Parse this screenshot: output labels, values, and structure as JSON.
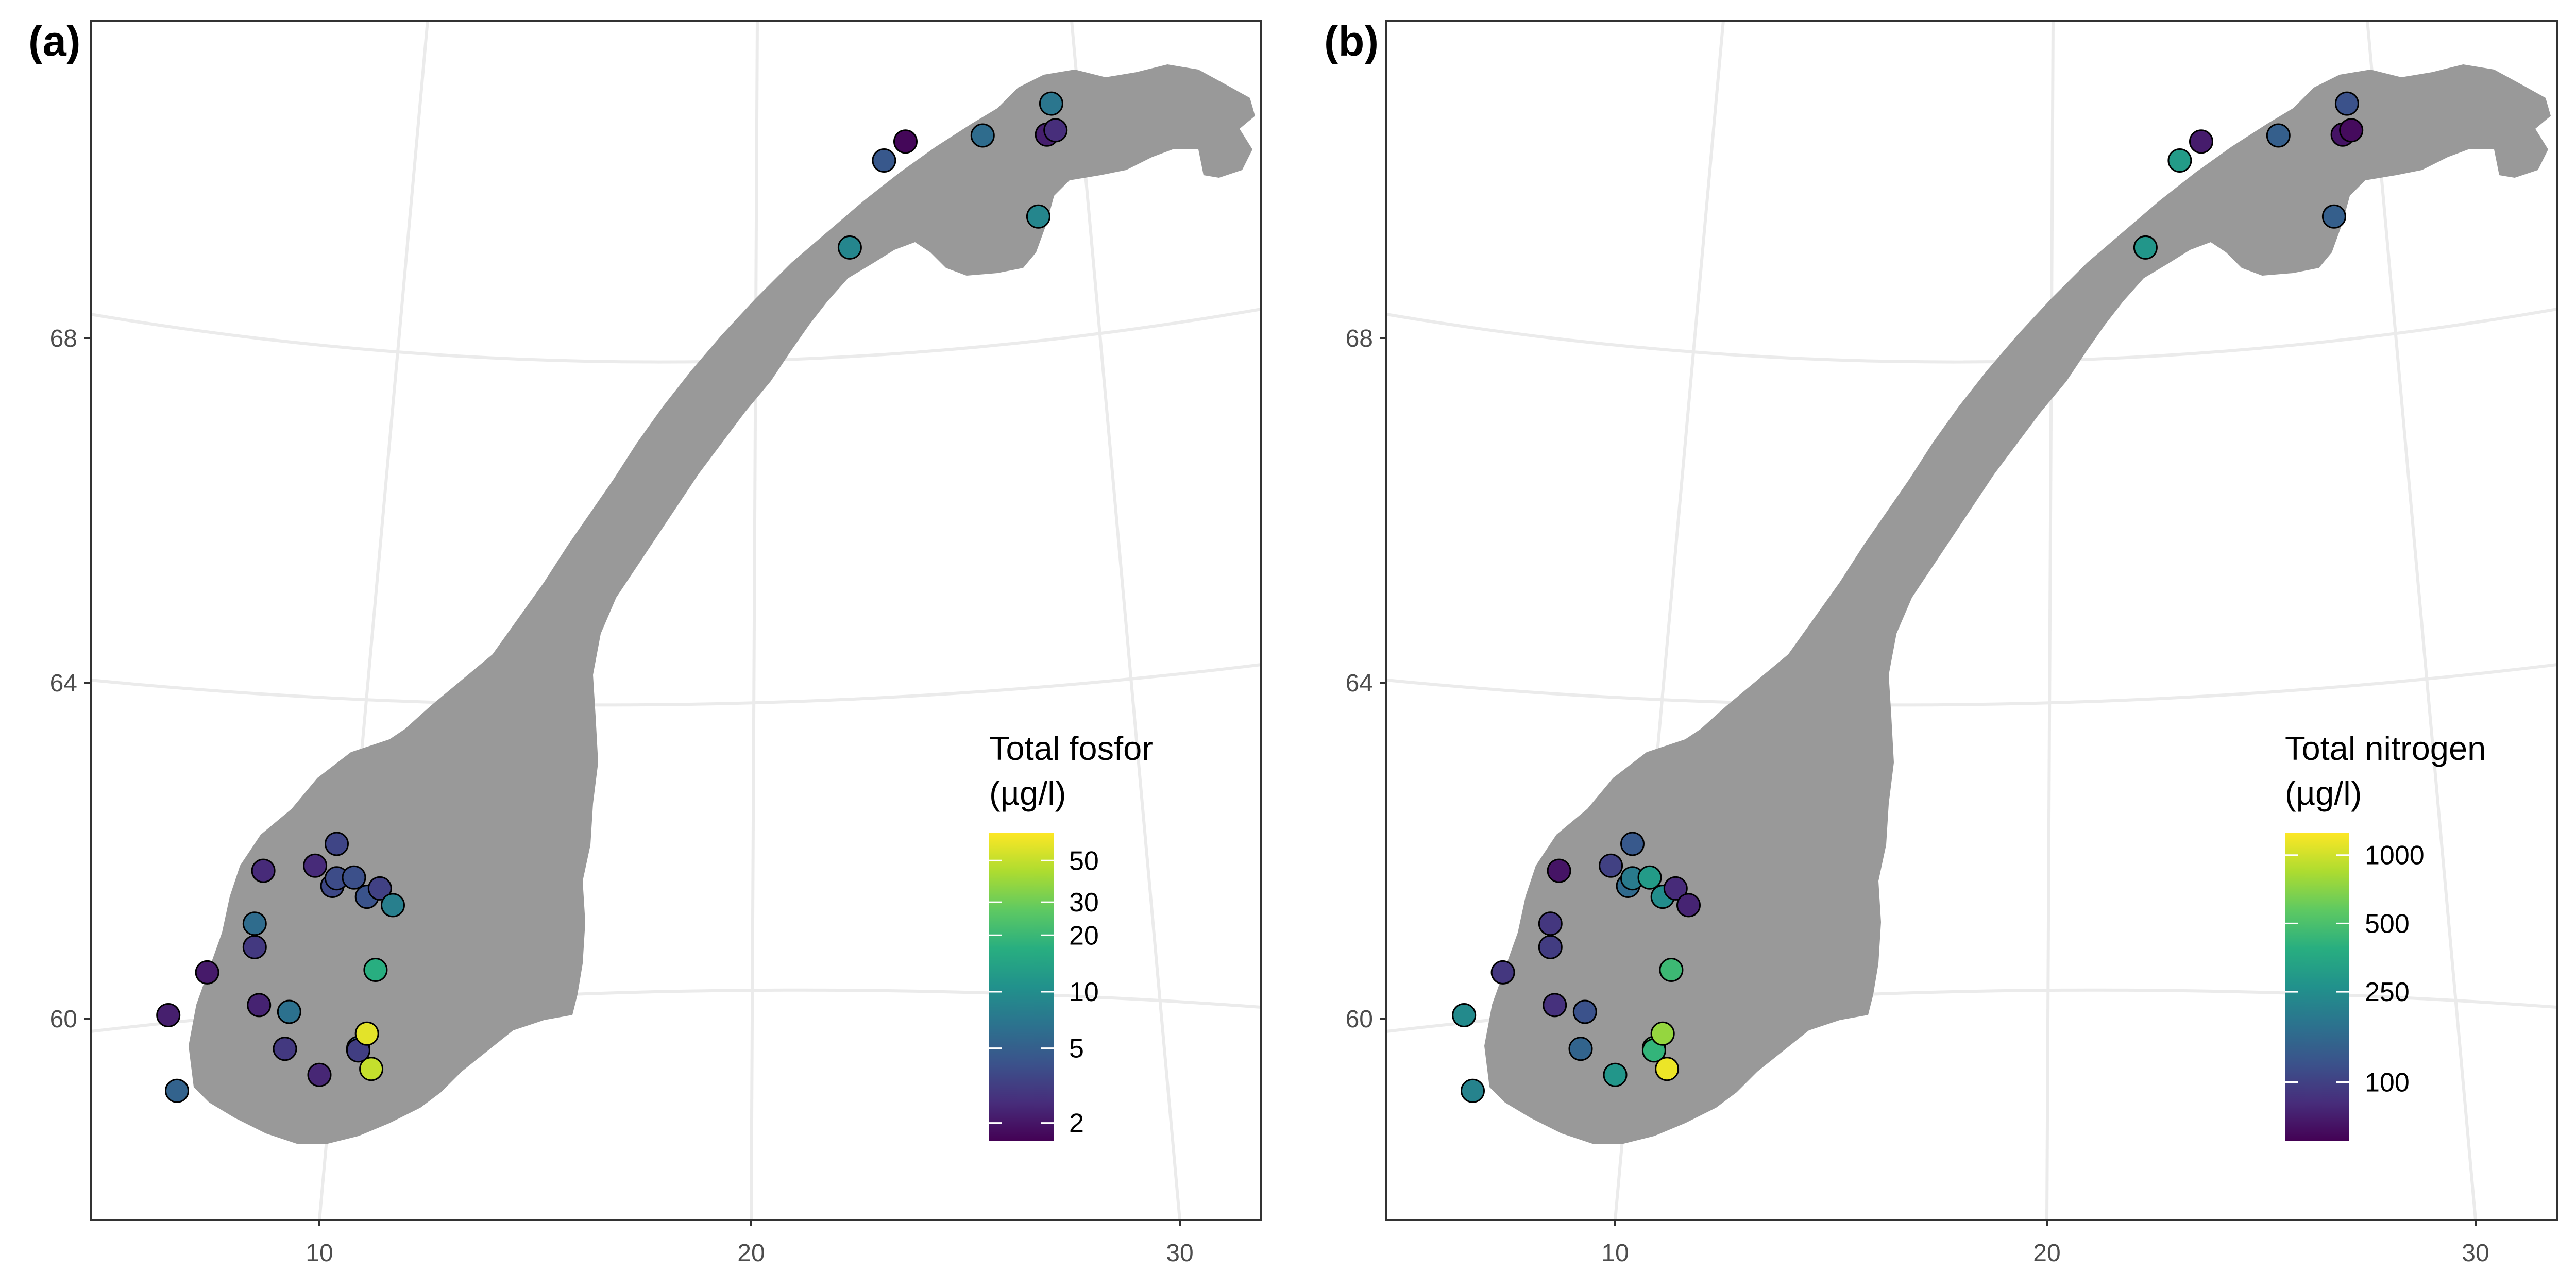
{
  "axes": {
    "x_ticks": [
      "10",
      "20",
      "30"
    ],
    "y_ticks": [
      "60",
      "64",
      "68"
    ]
  },
  "panels": [
    {
      "tag": "(a)",
      "legend": {
        "title_line1": "Total fosfor",
        "title_line2": "(µg/l)",
        "ticks": [
          "50",
          "30",
          "20",
          "10",
          "5",
          "2"
        ]
      },
      "lakes": [
        {
          "lon": 6.5,
          "lat": 60.04,
          "value": 2.2
        },
        {
          "lon": 6.7,
          "lat": 59.14,
          "value": 5.3
        },
        {
          "lon": 7.4,
          "lat": 60.55,
          "value": 2.1
        },
        {
          "lon": 8.6,
          "lat": 60.16,
          "value": 2.3
        },
        {
          "lon": 8.7,
          "lat": 61.76,
          "value": 2.5
        },
        {
          "lon": 8.5,
          "lat": 61.13,
          "value": 6.0
        },
        {
          "lon": 8.5,
          "lat": 60.85,
          "value": 3.0
        },
        {
          "lon": 9.3,
          "lat": 60.08,
          "value": 6.5
        },
        {
          "lon": 9.2,
          "lat": 59.64,
          "value": 3.0
        },
        {
          "lon": 9.9,
          "lat": 61.82,
          "value": 2.5
        },
        {
          "lon": 10.0,
          "lat": 59.33,
          "value": 2.4
        },
        {
          "lon": 10.4,
          "lat": 62.08,
          "value": 3.5
        },
        {
          "lon": 10.3,
          "lat": 61.58,
          "value": 3.6
        },
        {
          "lon": 10.4,
          "lat": 61.67,
          "value": 3.8
        },
        {
          "lon": 10.8,
          "lat": 61.68,
          "value": 4.0
        },
        {
          "lon": 10.9,
          "lat": 59.65,
          "value": 5.0
        },
        {
          "lon": 10.9,
          "lat": 59.62,
          "value": 3.2
        },
        {
          "lon": 11.1,
          "lat": 61.45,
          "value": 4.2
        },
        {
          "lon": 11.4,
          "lat": 61.55,
          "value": 3.3
        },
        {
          "lon": 11.7,
          "lat": 61.35,
          "value": 8.0
        },
        {
          "lon": 11.3,
          "lat": 60.58,
          "value": 17.0
        },
        {
          "lon": 11.1,
          "lat": 59.82,
          "value": 60.0
        },
        {
          "lon": 11.2,
          "lat": 59.4,
          "value": 50.0
        },
        {
          "lon": 22.3,
          "lat": 69.05,
          "value": 9.0
        },
        {
          "lon": 23.1,
          "lat": 70.06,
          "value": 4.5
        },
        {
          "lon": 23.6,
          "lat": 70.28,
          "value": 1.7
        },
        {
          "lon": 25.4,
          "lat": 70.35,
          "value": 6.0
        },
        {
          "lon": 26.7,
          "lat": 69.41,
          "value": 9.0
        },
        {
          "lon": 27.0,
          "lat": 70.72,
          "value": 7.0
        },
        {
          "lon": 26.9,
          "lat": 70.36,
          "value": 2.2
        },
        {
          "lon": 27.1,
          "lat": 70.41,
          "value": 2.6
        }
      ]
    },
    {
      "tag": "(b)",
      "legend": {
        "title_line1": "Total nitrogen",
        "title_line2": "(µg/l)",
        "ticks": [
          "1000",
          "500",
          "250",
          "100"
        ]
      },
      "lakes": [
        {
          "lon": 6.5,
          "lat": 60.04,
          "value": 240
        },
        {
          "lon": 6.7,
          "lat": 59.14,
          "value": 220
        },
        {
          "lon": 7.4,
          "lat": 60.55,
          "value": 90
        },
        {
          "lon": 8.6,
          "lat": 60.16,
          "value": 85
        },
        {
          "lon": 8.7,
          "lat": 61.76,
          "value": 65
        },
        {
          "lon": 8.5,
          "lat": 61.13,
          "value": 90
        },
        {
          "lon": 8.5,
          "lat": 60.85,
          "value": 95
        },
        {
          "lon": 9.3,
          "lat": 60.08,
          "value": 120
        },
        {
          "lon": 9.2,
          "lat": 59.64,
          "value": 150
        },
        {
          "lon": 9.9,
          "lat": 61.82,
          "value": 100
        },
        {
          "lon": 10.0,
          "lat": 59.33,
          "value": 280
        },
        {
          "lon": 10.4,
          "lat": 62.08,
          "value": 130
        },
        {
          "lon": 10.3,
          "lat": 61.58,
          "value": 160
        },
        {
          "lon": 10.4,
          "lat": 61.67,
          "value": 200
        },
        {
          "lon": 10.8,
          "lat": 61.68,
          "value": 300
        },
        {
          "lon": 10.9,
          "lat": 59.65,
          "value": 550
        },
        {
          "lon": 10.9,
          "lat": 59.62,
          "value": 420
        },
        {
          "lon": 11.1,
          "lat": 61.45,
          "value": 250
        },
        {
          "lon": 11.4,
          "lat": 61.55,
          "value": 80
        },
        {
          "lon": 11.7,
          "lat": 61.35,
          "value": 75
        },
        {
          "lon": 11.3,
          "lat": 60.58,
          "value": 450
        },
        {
          "lon": 11.1,
          "lat": 59.82,
          "value": 750
        },
        {
          "lon": 11.2,
          "lat": 59.4,
          "value": 1150
        },
        {
          "lon": 22.3,
          "lat": 69.05,
          "value": 280
        },
        {
          "lon": 23.1,
          "lat": 70.06,
          "value": 300
        },
        {
          "lon": 23.6,
          "lat": 70.28,
          "value": 70
        },
        {
          "lon": 25.4,
          "lat": 70.35,
          "value": 140
        },
        {
          "lon": 26.7,
          "lat": 69.41,
          "value": 140
        },
        {
          "lon": 27.0,
          "lat": 70.72,
          "value": 120
        },
        {
          "lon": 26.9,
          "lat": 70.36,
          "value": 65
        },
        {
          "lon": 27.1,
          "lat": 70.41,
          "value": 60
        }
      ]
    }
  ]
}
